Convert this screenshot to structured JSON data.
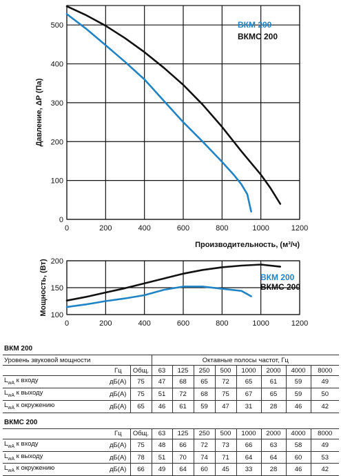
{
  "chart_data": [
    {
      "type": "line",
      "xlabel": "Производительность, (м³/ч)",
      "ylabel": "Давление, ΔР (Па)",
      "xlim": [
        0,
        1200
      ],
      "ylim": [
        0,
        550
      ],
      "xticks": [
        0,
        200,
        400,
        600,
        800,
        1000,
        1200
      ],
      "yticks": [
        0,
        100,
        200,
        300,
        400,
        500
      ],
      "grid": true,
      "legend": "top-right",
      "series": [
        {
          "name": "ВКМ 200",
          "color": "#1f83c4",
          "points": [
            [
              0,
              528
            ],
            [
              100,
              490
            ],
            [
              200,
              448
            ],
            [
              300,
              405
            ],
            [
              400,
              360
            ],
            [
              500,
              305
            ],
            [
              600,
              250
            ],
            [
              700,
              200
            ],
            [
              800,
              148
            ],
            [
              860,
              115
            ],
            [
              900,
              90
            ],
            [
              930,
              65
            ],
            [
              950,
              20
            ]
          ]
        },
        {
          "name": "ВКМС 200",
          "color": "#111111",
          "points": [
            [
              0,
              548
            ],
            [
              100,
              525
            ],
            [
              200,
              498
            ],
            [
              300,
              466
            ],
            [
              400,
              430
            ],
            [
              500,
              390
            ],
            [
              600,
              346
            ],
            [
              700,
              295
            ],
            [
              800,
              238
            ],
            [
              900,
              175
            ],
            [
              1000,
              115
            ],
            [
              1050,
              80
            ],
            [
              1100,
              40
            ]
          ]
        }
      ]
    },
    {
      "type": "line",
      "xlabel": "",
      "ylabel": "Мощность, (Вт)",
      "xlim": [
        0,
        1200
      ],
      "ylim": [
        100,
        200
      ],
      "xticks": [
        0,
        200,
        400,
        600,
        800,
        1000,
        1200
      ],
      "yticks": [
        100,
        150,
        200
      ],
      "grid": true,
      "legend": "right",
      "series": [
        {
          "name": "ВКМ 200",
          "color": "#1f83c4",
          "points": [
            [
              0,
              114
            ],
            [
              100,
              119
            ],
            [
              200,
              125
            ],
            [
              300,
              130
            ],
            [
              400,
              136
            ],
            [
              500,
              146
            ],
            [
              600,
              152
            ],
            [
              700,
              152
            ],
            [
              800,
              148
            ],
            [
              900,
              144
            ],
            [
              950,
              134
            ]
          ]
        },
        {
          "name": "ВКМС 200",
          "color": "#111111",
          "points": [
            [
              0,
              126
            ],
            [
              100,
              133
            ],
            [
              200,
              141
            ],
            [
              300,
              149
            ],
            [
              400,
              158
            ],
            [
              500,
              167
            ],
            [
              600,
              176
            ],
            [
              700,
              183
            ],
            [
              800,
              188
            ],
            [
              900,
              191
            ],
            [
              1000,
              193
            ],
            [
              1100,
              189
            ]
          ]
        }
      ]
    }
  ],
  "tables": [
    {
      "title": "ВКМ 200",
      "caption": "Уровень звуковой мощности",
      "units_header": "Гц",
      "overall_header": "Общ.",
      "bands_title": "Октавные полосы частот, Гц",
      "bands": [
        "63",
        "125",
        "250",
        "500",
        "1000",
        "2000",
        "4000",
        "8000"
      ],
      "rows": [
        {
          "sub": "wA",
          "label": " к входу",
          "unit": "дБ(А)",
          "values": [
            "75",
            "47",
            "68",
            "65",
            "72",
            "65",
            "61",
            "59",
            "49"
          ]
        },
        {
          "sub": "wA",
          "label": " к выходу",
          "unit": "дБ(А)",
          "values": [
            "75",
            "51",
            "72",
            "68",
            "75",
            "67",
            "65",
            "59",
            "50"
          ]
        },
        {
          "sub": "wA",
          "label": " к окружению",
          "unit": "дБ(А)",
          "values": [
            "65",
            "46",
            "61",
            "59",
            "47",
            "31",
            "28",
            "46",
            "42"
          ]
        }
      ]
    },
    {
      "title": "ВКМС 200",
      "units_header": "Гц",
      "overall_header": "Общ.",
      "bands": [
        "63",
        "125",
        "250",
        "500",
        "1000",
        "2000",
        "4000",
        "8000"
      ],
      "rows": [
        {
          "sub": "wA",
          "label": " к входу",
          "unit": "дБ(А)",
          "values": [
            "75",
            "48",
            "66",
            "72",
            "73",
            "66",
            "63",
            "58",
            "49"
          ]
        },
        {
          "sub": "wA",
          "label": " к выходу",
          "unit": "дБ(А)",
          "values": [
            "78",
            "51",
            "70",
            "74",
            "71",
            "64",
            "64",
            "60",
            "53"
          ]
        },
        {
          "sub": "wA",
          "label": " к окружению",
          "unit": "дБ(А)",
          "values": [
            "66",
            "49",
            "64",
            "60",
            "45",
            "33",
            "28",
            "46",
            "42"
          ]
        }
      ]
    }
  ]
}
